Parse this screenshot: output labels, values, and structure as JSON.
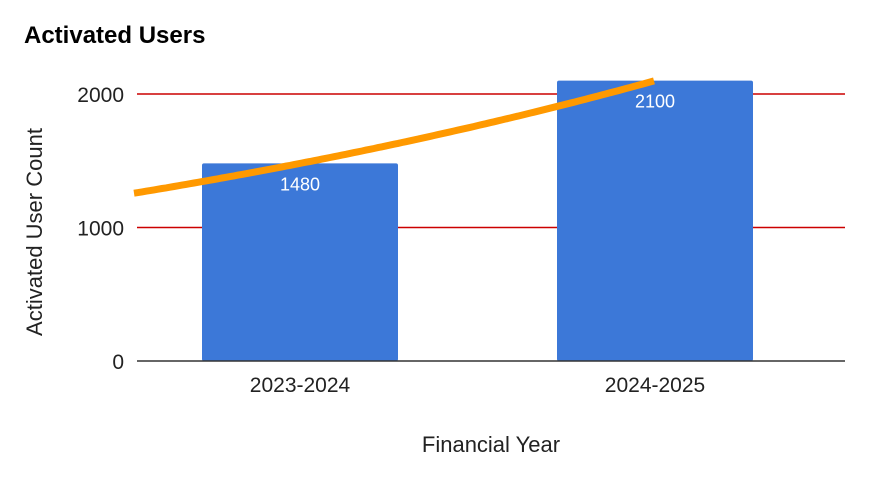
{
  "chart_data": {
    "type": "bar",
    "title": "Activated Users",
    "xlabel": "Financial Year",
    "ylabel": "Activated User Count",
    "categories": [
      "2023-2024",
      "2024-2025"
    ],
    "values": [
      1480,
      2100
    ],
    "data_labels": [
      "1480",
      "2100"
    ],
    "yticks": [
      0,
      1000,
      2000
    ],
    "ytick_labels": [
      "0",
      "1000",
      "2000"
    ],
    "ylim": [
      0,
      2100
    ],
    "grid": true,
    "trendline": {
      "type": "exponential",
      "values": [
        1480,
        2100
      ]
    },
    "colors": {
      "bar": "#3c78d8",
      "trendline": "#ff9900",
      "gridline": "#cc0000",
      "baseline": "#333333"
    }
  }
}
